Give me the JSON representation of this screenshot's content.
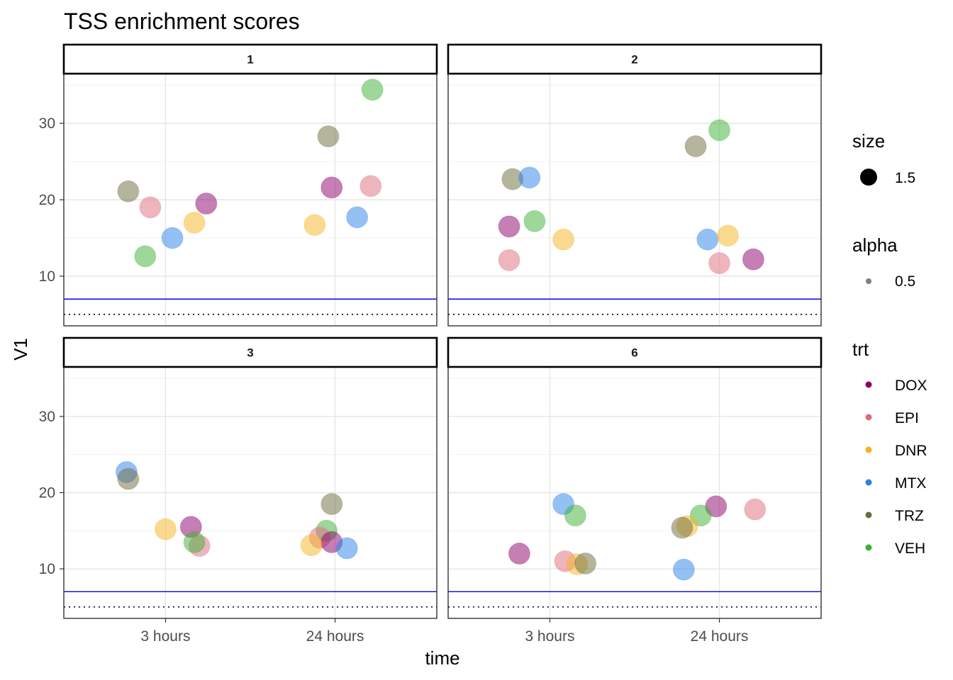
{
  "chart_data": {
    "type": "scatter",
    "title": "TSS enrichment scores",
    "xlabel": "time",
    "ylabel": "V1",
    "x_categories": [
      "3 hours",
      "24 hours"
    ],
    "ylim": [
      3.5,
      36.5
    ],
    "yticks": [
      10,
      20,
      30
    ],
    "reference_lines": {
      "solid_blue": 7,
      "dotted_black": 5
    },
    "grid": true,
    "legend": {
      "position": "right",
      "size": {
        "title": "size",
        "label": "1.5"
      },
      "alpha": {
        "title": "alpha",
        "label": "0.5"
      },
      "trt": {
        "title": "trt",
        "items": [
          {
            "label": "DOX",
            "color": "#8B006B"
          },
          {
            "label": "EPI",
            "color": "#E06B7B"
          },
          {
            "label": "DNR",
            "color": "#F5B321"
          },
          {
            "label": "MTX",
            "color": "#2A82E8"
          },
          {
            "label": "TRZ",
            "color": "#6B6B3D"
          },
          {
            "label": "VEH",
            "color": "#3CB034"
          }
        ]
      }
    },
    "panels": [
      {
        "label": "1",
        "points": [
          {
            "trt": "TRZ",
            "x": 0.78,
            "y": 21.1
          },
          {
            "trt": "EPI",
            "x": 0.91,
            "y": 19.0
          },
          {
            "trt": "VEH",
            "x": 0.88,
            "y": 12.6
          },
          {
            "trt": "MTX",
            "x": 1.04,
            "y": 15.0
          },
          {
            "trt": "DNR",
            "x": 1.17,
            "y": 17.0
          },
          {
            "trt": "DOX",
            "x": 1.24,
            "y": 19.5
          },
          {
            "trt": "TRZ",
            "x": 1.96,
            "y": 28.3
          },
          {
            "trt": "VEH",
            "x": 2.22,
            "y": 34.4
          },
          {
            "trt": "DOX",
            "x": 1.98,
            "y": 21.6
          },
          {
            "trt": "EPI",
            "x": 2.21,
            "y": 21.8
          },
          {
            "trt": "DNR",
            "x": 1.88,
            "y": 16.7
          },
          {
            "trt": "MTX",
            "x": 2.13,
            "y": 17.7
          }
        ]
      },
      {
        "label": "2",
        "points": [
          {
            "trt": "TRZ",
            "x": 0.78,
            "y": 22.7
          },
          {
            "trt": "MTX",
            "x": 0.88,
            "y": 22.9
          },
          {
            "trt": "DOX",
            "x": 0.76,
            "y": 16.5
          },
          {
            "trt": "VEH",
            "x": 0.91,
            "y": 17.2
          },
          {
            "trt": "DNR",
            "x": 1.08,
            "y": 14.8
          },
          {
            "trt": "EPI",
            "x": 0.76,
            "y": 12.1
          },
          {
            "trt": "TRZ",
            "x": 1.86,
            "y": 27.0
          },
          {
            "trt": "VEH",
            "x": 2.0,
            "y": 29.1
          },
          {
            "trt": "MTX",
            "x": 1.93,
            "y": 14.8
          },
          {
            "trt": "DNR",
            "x": 2.05,
            "y": 15.3
          },
          {
            "trt": "EPI",
            "x": 2.0,
            "y": 11.7
          },
          {
            "trt": "DOX",
            "x": 2.2,
            "y": 12.2
          }
        ]
      },
      {
        "label": "3",
        "points": [
          {
            "trt": "MTX",
            "x": 0.77,
            "y": 22.7
          },
          {
            "trt": "TRZ",
            "x": 0.78,
            "y": 21.8
          },
          {
            "trt": "DNR",
            "x": 1.0,
            "y": 15.2
          },
          {
            "trt": "DOX",
            "x": 1.15,
            "y": 15.5
          },
          {
            "trt": "EPI",
            "x": 1.2,
            "y": 13.0
          },
          {
            "trt": "VEH",
            "x": 1.17,
            "y": 13.5
          },
          {
            "trt": "TRZ",
            "x": 1.98,
            "y": 18.5
          },
          {
            "trt": "VEH",
            "x": 1.95,
            "y": 15.0
          },
          {
            "trt": "EPI",
            "x": 1.91,
            "y": 14.1
          },
          {
            "trt": "DOX",
            "x": 1.98,
            "y": 13.5
          },
          {
            "trt": "DNR",
            "x": 1.86,
            "y": 13.1
          },
          {
            "trt": "MTX",
            "x": 2.07,
            "y": 12.7
          }
        ]
      },
      {
        "label": "6",
        "points": [
          {
            "trt": "MTX",
            "x": 1.08,
            "y": 18.5
          },
          {
            "trt": "VEH",
            "x": 1.15,
            "y": 17.0
          },
          {
            "trt": "DOX",
            "x": 0.82,
            "y": 12.0
          },
          {
            "trt": "EPI",
            "x": 1.09,
            "y": 11.0
          },
          {
            "trt": "DNR",
            "x": 1.16,
            "y": 10.6
          },
          {
            "trt": "TRZ",
            "x": 1.21,
            "y": 10.7
          },
          {
            "trt": "DOX",
            "x": 1.98,
            "y": 18.2
          },
          {
            "trt": "EPI",
            "x": 2.21,
            "y": 17.8
          },
          {
            "trt": "VEH",
            "x": 1.89,
            "y": 17.0
          },
          {
            "trt": "DNR",
            "x": 1.81,
            "y": 15.6
          },
          {
            "trt": "TRZ",
            "x": 1.78,
            "y": 15.4
          },
          {
            "trt": "MTX",
            "x": 1.79,
            "y": 9.9
          }
        ]
      }
    ]
  }
}
